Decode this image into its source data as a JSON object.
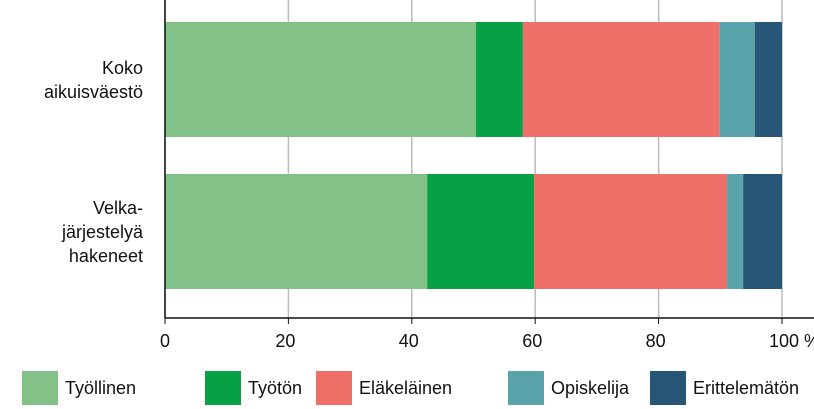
{
  "chart_data": {
    "type": "stacked_barh",
    "categories": [
      "Koko\naikuisväestö",
      "Velka-\njärjestelyä\nhakeneet"
    ],
    "series": [
      {
        "name": "Työllinen",
        "color": "#82c188",
        "values": [
          50.4,
          42.5
        ]
      },
      {
        "name": "Työtön",
        "color": "#08a045",
        "values": [
          7.6,
          17.3
        ]
      },
      {
        "name": "Eläkeläinen",
        "color": "#ee7068",
        "values": [
          31.9,
          31.3
        ]
      },
      {
        "name": "Opiskelija",
        "color": "#5ba3ab",
        "values": [
          5.7,
          2.6
        ]
      },
      {
        "name": "Erittelemätön",
        "color": "#285676",
        "values": [
          4.4,
          6.3
        ]
      }
    ],
    "xlim": [
      0,
      100
    ],
    "xticks": [
      0,
      20,
      40,
      60,
      80,
      {
        "value": 100,
        "label": "100 %"
      }
    ],
    "grid": true,
    "legend": "bottom"
  }
}
